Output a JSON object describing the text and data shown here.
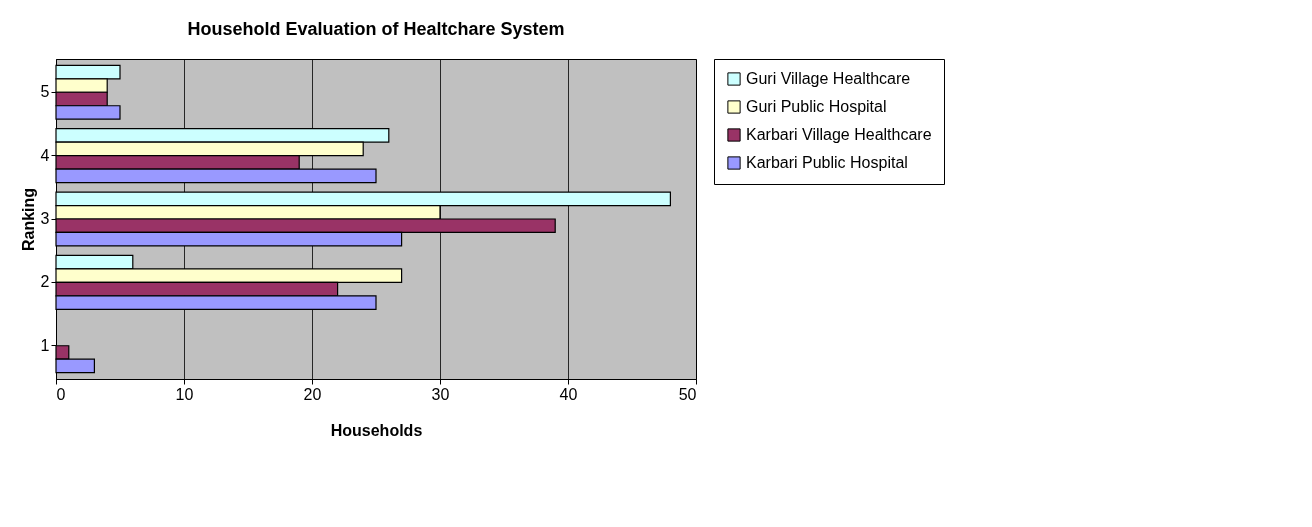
{
  "chart_data": {
    "type": "bar",
    "orientation": "horizontal",
    "title": "Household Evaluation of Healtchare System",
    "xlabel": "Households",
    "ylabel": "Ranking",
    "categories": [
      "5",
      "4",
      "3",
      "2",
      "1"
    ],
    "series": [
      {
        "name": "Guri Village Healthcare",
        "color": "#ccffff",
        "values": [
          5,
          26,
          48,
          6,
          0
        ]
      },
      {
        "name": "Guri Public Hospital",
        "color": "#ffffcc",
        "values": [
          4,
          24,
          30,
          27,
          0
        ]
      },
      {
        "name": "Karbari Village Healthcare",
        "color": "#993366",
        "values": [
          4,
          19,
          39,
          22,
          1
        ]
      },
      {
        "name": "Karbari Public Hospital",
        "color": "#9999ff",
        "values": [
          5,
          25,
          27,
          25,
          3
        ]
      }
    ],
    "xlim": [
      0,
      50
    ],
    "xticks": [
      0,
      10,
      20,
      30,
      40,
      50
    ],
    "grid": "x",
    "legend": "right"
  }
}
